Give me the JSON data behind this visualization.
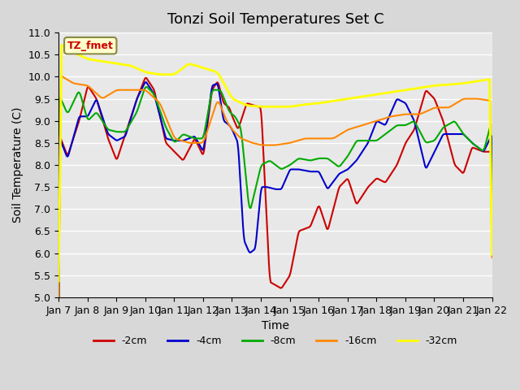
{
  "title": "Tonzi Soil Temperatures Set C",
  "xlabel": "Time",
  "ylabel": "Soil Temperature (C)",
  "ylim": [
    5.0,
    11.0
  ],
  "yticks": [
    5.0,
    5.5,
    6.0,
    6.5,
    7.0,
    7.5,
    8.0,
    8.5,
    9.0,
    9.5,
    10.0,
    10.5,
    11.0
  ],
  "xtick_labels": [
    "Jan 7",
    "Jan 8",
    "Jan 9",
    "Jan 10",
    "Jan 11",
    "Jan 12",
    "Jan 13",
    "Jan 14",
    "Jan 15",
    "Jan 16",
    "Jan 17",
    "Jan 18",
    "Jan 19",
    "Jan 20",
    "Jan 21",
    "Jan 22"
  ],
  "colors": {
    "-2cm": "#cc0000",
    "-4cm": "#0000cc",
    "-8cm": "#00aa00",
    "-16cm": "#ff8800",
    "-32cm": "#ffff00"
  },
  "legend_labels": [
    "-2cm",
    "-4cm",
    "-8cm",
    "-16cm",
    "-32cm"
  ],
  "annotation_label": "TZ_fmet",
  "annotation_color": "#cc0000",
  "annotation_bg": "#ffffcc",
  "background_color": "#e8e8e8",
  "plot_bg_color": "#e8e8e8",
  "grid_color": "#ffffff",
  "title_fontsize": 13,
  "axis_label_fontsize": 10,
  "tick_fontsize": 9,
  "legend_fontsize": 9,
  "linewidth": 1.5
}
